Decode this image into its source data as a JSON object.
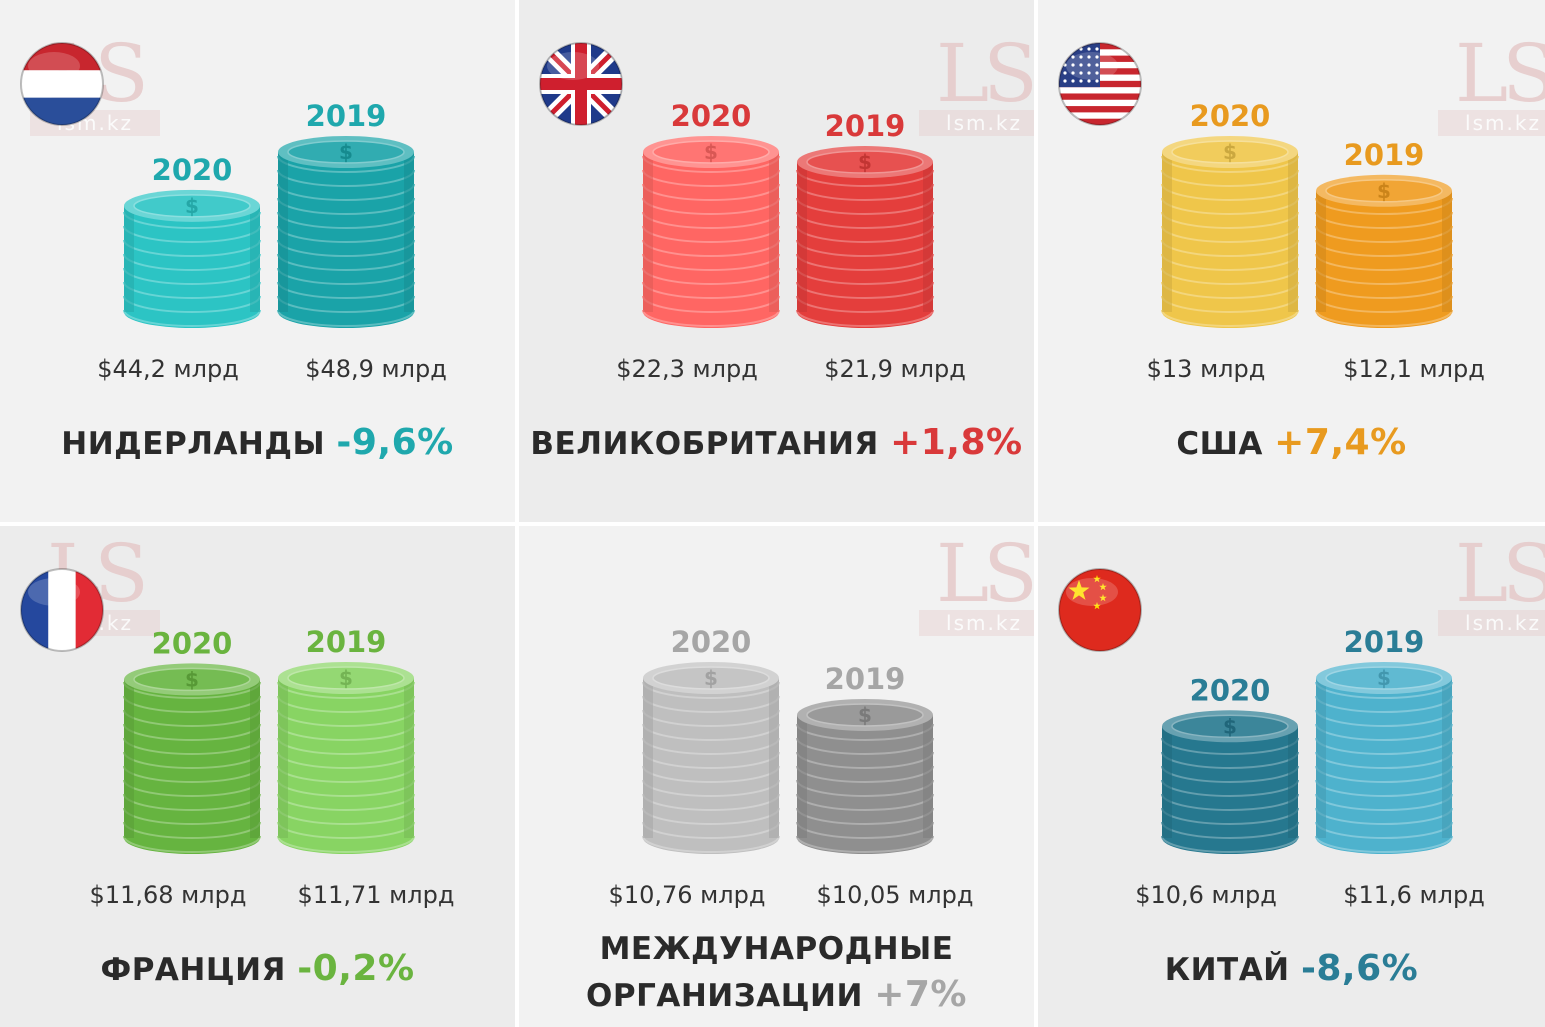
{
  "watermark": {
    "logo": "LS",
    "site": "lsm.kz"
  },
  "colors": {
    "panel_light": "#f2f2f2",
    "panel_dark": "#ececec",
    "caption_text": "#2a2a2a",
    "amount_text": "#333333"
  },
  "chart_data": [
    {
      "type": "bar",
      "country": "НИДЕРЛАНДЫ",
      "change": "-9,6%",
      "flag_icon": "netherlands-flag-icon",
      "accent": "#1fa8ad",
      "categories": [
        "2020",
        "2019"
      ],
      "values": [
        44.2,
        48.9
      ],
      "value_labels": [
        "$44,2 млрд",
        "$48,9 млрд"
      ],
      "coin_colors": [
        "#2cc4c4",
        "#1aa3a8"
      ]
    },
    {
      "type": "bar",
      "country": "ВЕЛИКОБРИТАНИЯ",
      "change": "+1,8%",
      "flag_icon": "united-kingdom-flag-icon",
      "accent": "#d9393a",
      "categories": [
        "2020",
        "2019"
      ],
      "values": [
        22.3,
        21.9
      ],
      "value_labels": [
        "$22,3 млрд",
        "$21,9 млрд"
      ],
      "coin_colors": [
        "#ff6663",
        "#e43e3c"
      ]
    },
    {
      "type": "bar",
      "country": "США",
      "change": "+7,4%",
      "flag_icon": "usa-flag-icon",
      "accent": "#e89a1f",
      "categories": [
        "2020",
        "2019"
      ],
      "values": [
        13,
        12.1
      ],
      "value_labels": [
        "$13 млрд",
        "$12,1 млрд"
      ],
      "coin_colors": [
        "#efc64a",
        "#ef9b1f"
      ]
    },
    {
      "type": "bar",
      "country": "ФРАНЦИЯ",
      "change": "-0,2%",
      "flag_icon": "france-flag-icon",
      "accent": "#6ab43f",
      "categories": [
        "2020",
        "2019"
      ],
      "values": [
        11.68,
        11.71
      ],
      "value_labels": [
        "$11,68 млрд",
        "$11,71 млрд"
      ],
      "coin_colors": [
        "#66b440",
        "#88d463"
      ]
    },
    {
      "type": "bar",
      "country": "МЕЖДУНАРОДНЫЕ ОРГАНИЗАЦИИ",
      "country_lines": [
        "МЕЖДУНАРОДНЫЕ",
        "ОРГАНИЗАЦИИ"
      ],
      "change": "+7%",
      "flag_icon": "",
      "accent": "#a6a6a6",
      "categories": [
        "2020",
        "2019"
      ],
      "values": [
        10.76,
        10.05
      ],
      "value_labels": [
        "$10,76 млрд",
        "$10,05 млрд"
      ],
      "coin_colors": [
        "#bfbfbf",
        "#8f8f8f"
      ]
    },
    {
      "type": "bar",
      "country": "КИТАЙ",
      "change": "-8,6%",
      "flag_icon": "china-flag-icon",
      "accent": "#2a7d96",
      "categories": [
        "2020",
        "2019"
      ],
      "values": [
        10.6,
        11.6
      ],
      "value_labels": [
        "$10,6 млрд",
        "$11,6 млрд"
      ],
      "coin_colors": [
        "#26788f",
        "#4eb2cd"
      ]
    }
  ]
}
